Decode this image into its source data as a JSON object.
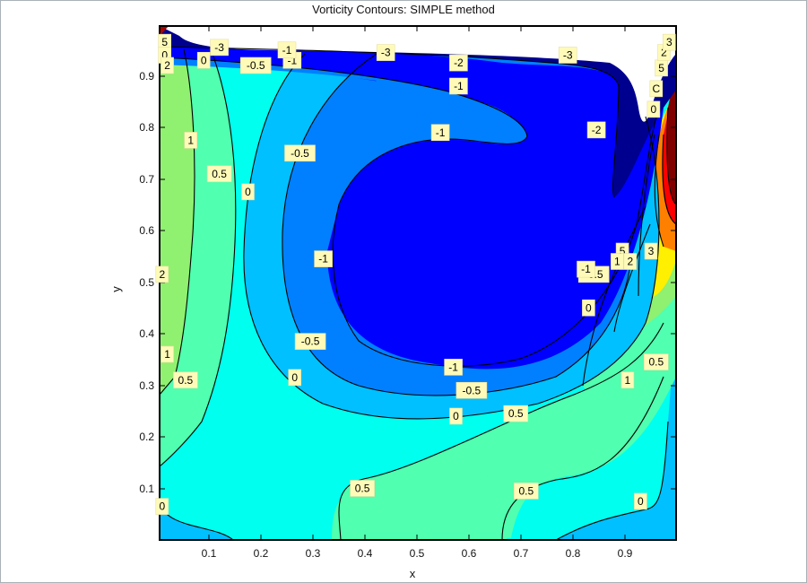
{
  "page": {
    "title": "Vorticity Contours: SIMPLE method",
    "xlabel": "x",
    "ylabel": "y"
  },
  "chart_data": {
    "type": "contour",
    "title": "Vorticity Contours: SIMPLE method",
    "xlabel": "x",
    "ylabel": "y",
    "xlim": [
      0,
      1
    ],
    "ylim": [
      0,
      1
    ],
    "xticks": [
      "0.1",
      "0.2",
      "0.3",
      "0.4",
      "0.5",
      "0.6",
      "0.7",
      "0.8",
      "0.9"
    ],
    "yticks": [
      "0.1",
      "0.2",
      "0.3",
      "0.4",
      "0.5",
      "0.6",
      "0.7",
      "0.8",
      "0.9"
    ],
    "colormap": "jet",
    "filled": true,
    "contour_levels": [
      -3,
      -2,
      -1,
      -0.5,
      0,
      0.5,
      1,
      2,
      3,
      5
    ],
    "grid": false,
    "legend": null,
    "contour_labels": [
      {
        "text": "-3",
        "x": 0.12,
        "y": 0.955
      },
      {
        "text": "0",
        "x": 0.09,
        "y": 0.93
      },
      {
        "text": "-0.5",
        "x": 0.19,
        "y": 0.92
      },
      {
        "text": "-1",
        "x": 0.26,
        "y": 0.93
      },
      {
        "text": "-1",
        "x": 0.25,
        "y": 0.95
      },
      {
        "text": "-3",
        "x": 0.44,
        "y": 0.945
      },
      {
        "text": "-2",
        "x": 0.58,
        "y": 0.925
      },
      {
        "text": "-1",
        "x": 0.58,
        "y": 0.88
      },
      {
        "text": "-3",
        "x": 0.79,
        "y": 0.94
      },
      {
        "text": "-1",
        "x": 0.545,
        "y": 0.79
      },
      {
        "text": "-2",
        "x": 0.845,
        "y": 0.795
      },
      {
        "text": "1",
        "x": 0.065,
        "y": 0.775
      },
      {
        "text": "0.5",
        "x": 0.12,
        "y": 0.71
      },
      {
        "text": "0",
        "x": 0.175,
        "y": 0.675
      },
      {
        "text": "-0.5",
        "x": 0.275,
        "y": 0.75
      },
      {
        "text": "-1",
        "x": 0.32,
        "y": 0.545
      },
      {
        "text": "-0.5",
        "x": 0.295,
        "y": 0.385
      },
      {
        "text": "0",
        "x": 0.265,
        "y": 0.315
      },
      {
        "text": "-1",
        "x": 0.57,
        "y": 0.335
      },
      {
        "text": "-0.5",
        "x": 0.605,
        "y": 0.29
      },
      {
        "text": "0",
        "x": 0.575,
        "y": 0.24
      },
      {
        "text": "0.5",
        "x": 0.69,
        "y": 0.245
      },
      {
        "text": "0.5",
        "x": 0.395,
        "y": 0.1
      },
      {
        "text": "0.5",
        "x": 0.71,
        "y": 0.095
      },
      {
        "text": "0",
        "x": 0.93,
        "y": 0.075
      },
      {
        "text": "0",
        "x": 0.01,
        "y": 0.065
      },
      {
        "text": "1",
        "x": 0.02,
        "y": 0.36
      },
      {
        "text": "0.5",
        "x": 0.055,
        "y": 0.31
      },
      {
        "text": "2",
        "x": 0.01,
        "y": 0.515
      },
      {
        "text": "1",
        "x": 0.905,
        "y": 0.31
      },
      {
        "text": "0.5",
        "x": 0.96,
        "y": 0.345
      },
      {
        "text": "0",
        "x": 0.83,
        "y": 0.45
      },
      {
        "text": "-0.5",
        "x": 0.84,
        "y": 0.515
      },
      {
        "text": "-1",
        "x": 0.825,
        "y": 0.525
      },
      {
        "text": "5",
        "x": 0.895,
        "y": 0.56
      },
      {
        "text": "1",
        "x": 0.885,
        "y": 0.54
      },
      {
        "text": "2",
        "x": 0.91,
        "y": 0.54
      },
      {
        "text": "3",
        "x": 0.95,
        "y": 0.56
      },
      {
        "text": "0",
        "x": 0.955,
        "y": 0.835
      },
      {
        "text": "C",
        "x": 0.96,
        "y": 0.875
      },
      {
        "text": "5",
        "x": 0.97,
        "y": 0.915
      },
      {
        "text": "2",
        "x": 0.975,
        "y": 0.945
      },
      {
        "text": "3",
        "x": 0.985,
        "y": 0.965
      },
      {
        "text": "5",
        "x": 0.015,
        "y": 0.965
      },
      {
        "text": "0",
        "x": 0.015,
        "y": 0.94
      },
      {
        "text": "2",
        "x": 0.02,
        "y": 0.92
      }
    ],
    "regions": [
      {
        "level": "<-3",
        "color": "#ffffff",
        "where": "top lid edge"
      },
      {
        "level": "-3 to -2",
        "color": "#00008f",
        "where": "top strip, right corner"
      },
      {
        "level": "-2 to -1",
        "color": "#0000ff",
        "where": "central vortex core"
      },
      {
        "level": "-1 to -0.5",
        "color": "#0080ff",
        "where": "ring around core"
      },
      {
        "level": "-0.5 to 0",
        "color": "#00c0ff",
        "where": "outer ring"
      },
      {
        "level": "0 to 0.5",
        "color": "#00ffef",
        "where": "bulk flow"
      },
      {
        "level": "0.5 to 1",
        "color": "#50ffaf",
        "where": "left wall, bottom center"
      },
      {
        "level": "1 to 2",
        "color": "#90f070",
        "where": "left wall, right wall lower"
      },
      {
        "level": "2 to 3",
        "color": "#ffef00",
        "where": "right wall"
      },
      {
        "level": "3 to 5",
        "color": "#ff8000",
        "where": "right wall top"
      },
      {
        "level": ">5",
        "color": "#800000",
        "where": "top-right corner"
      }
    ]
  }
}
